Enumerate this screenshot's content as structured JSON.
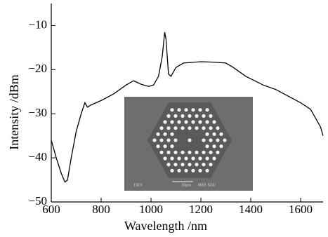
{
  "chart_data": {
    "type": "line",
    "xlabel": "Wavelength /nm",
    "ylabel": "Intensity /dBm",
    "x": [
      600,
      620,
      640,
      655,
      665,
      680,
      700,
      720,
      735,
      745,
      760,
      800,
      850,
      900,
      930,
      960,
      990,
      1010,
      1030,
      1045,
      1055,
      1060,
      1070,
      1080,
      1100,
      1130,
      1200,
      1250,
      1300,
      1330,
      1380,
      1450,
      1500,
      1550,
      1600,
      1640,
      1680,
      1690
    ],
    "values": [
      -36,
      -40,
      -43.5,
      -45.5,
      -45,
      -40,
      -34,
      -30,
      -27.5,
      -28.5,
      -28,
      -27,
      -25.5,
      -23.5,
      -22.5,
      -23.3,
      -23.8,
      -23.5,
      -21.5,
      -17,
      -11.5,
      -13,
      -21,
      -21.5,
      -19.5,
      -18.5,
      -18.2,
      -18.3,
      -18.5,
      -19.5,
      -21.5,
      -23.5,
      -24.5,
      -26,
      -27.5,
      -29,
      -33,
      -35
    ],
    "color": "#000000",
    "xlim": [
      600,
      1690
    ],
    "ylim": [
      -50,
      -5
    ],
    "xticks": [
      600,
      800,
      1000,
      1200,
      1400,
      1600
    ],
    "yticks": [
      {
        "value": -50,
        "label": "−50"
      },
      {
        "value": -40,
        "label": "−40"
      },
      {
        "value": -30,
        "label": "−30"
      },
      {
        "value": -20,
        "label": "−20"
      },
      {
        "value": -10,
        "label": "−10"
      }
    ],
    "inset_labels": [
      "15kV",
      "10μm",
      "0001 SZU"
    ]
  }
}
